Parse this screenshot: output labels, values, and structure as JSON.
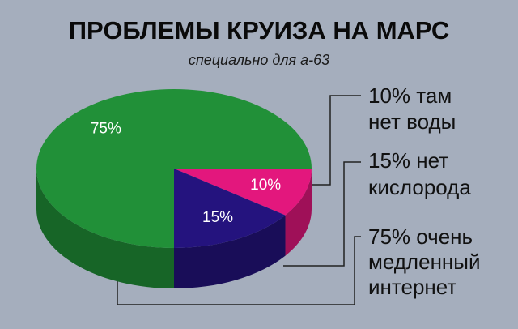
{
  "chart_data": {
    "type": "pie3d",
    "title": "ПРОБЛЕМЫ КРУИЗА НА МАРС",
    "subtitle": "специально для а-63",
    "categories": [
      [
        "10% там",
        "нет воды"
      ],
      [
        "15%  нет",
        "кислорода"
      ],
      [
        "75%  очень",
        "медленный",
        "интернет"
      ]
    ],
    "values": [
      10,
      15,
      75
    ],
    "value_labels": [
      "10%",
      "15%",
      "75%"
    ],
    "colors": [
      "#e3177d",
      "#24137e",
      "#219038"
    ]
  }
}
